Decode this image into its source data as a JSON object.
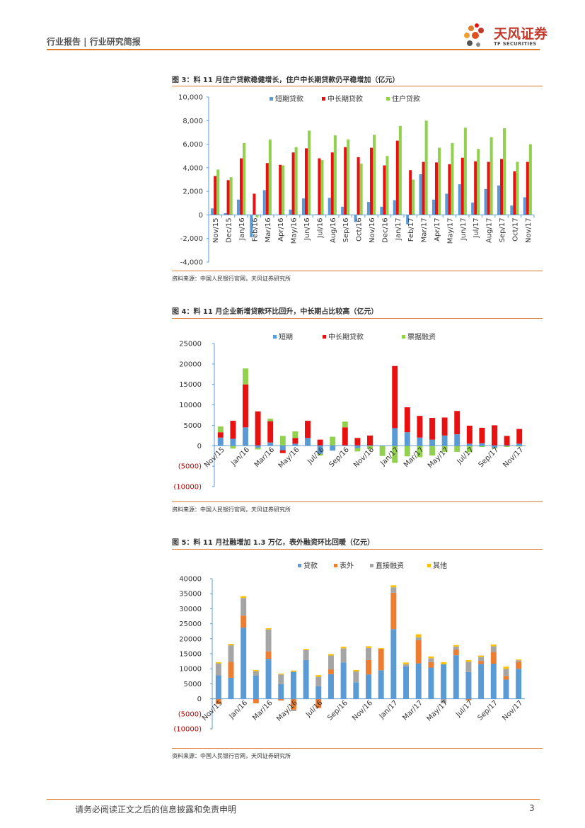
{
  "header": {
    "left": "行业报告 | 行业研究简报",
    "logo_cn": "天风证券",
    "logo_en": "TF SECURITIES"
  },
  "footer": {
    "disclaimer": "请务必阅读正文之后的信息披露和免责申明",
    "page": "3"
  },
  "colors": {
    "accent": "#e07c2c",
    "blue": "#5b9bd5",
    "red": "#e81010",
    "green": "#92d050",
    "orange": "#ed7d31",
    "gray": "#a5a5a5",
    "gold": "#ffc000",
    "neg": "#c00000"
  },
  "figures": [
    {
      "title": "图 3：料 11 月住户贷款稳健增长，住户中长期贷款仍平稳增加（亿元）",
      "source": "资料来源：中国人民银行官网，天风证券研究所"
    },
    {
      "title": "图 4：料 11 月企业新增贷款环比回升，中长期占比较高（亿元）",
      "source": "资料来源：中国人民银行官网，天风证券研究所"
    },
    {
      "title": "图 5：料 11 月社融增加 1.3 万亿，表外融资环比回暖（亿元）",
      "source": "资料来源：中国人民银行官网，天风证券研究所"
    }
  ],
  "chart_data": [
    {
      "type": "bar",
      "categories": [
        "Nov/15",
        "Dec/15",
        "Jan/16",
        "Feb/16",
        "Mar/16",
        "Apr/16",
        "May/16",
        "Jun/16",
        "Jul/16",
        "Aug/16",
        "Sep/16",
        "Oct/16",
        "Nov/16",
        "Dec/16",
        "Jan/17",
        "Feb/17",
        "Mar/17",
        "Apr/17",
        "May/17",
        "Jun/17",
        "Jul/17",
        "Aug/17",
        "Sep/17",
        "Oct/17",
        "Nov/17"
      ],
      "tick_labels": [
        "Nov/15",
        "Dec/15",
        "Jan/16",
        "Feb/16",
        "Mar/16",
        "Apr/16",
        "May/16",
        "Jun/16",
        "Jul/16",
        "Aug/16",
        "Sep/16",
        "Oct/16",
        "Nov/16",
        "Dec/16",
        "Jan/17",
        "Feb/17",
        "Mar/17",
        "Apr/17",
        "May/17",
        "Jun/17",
        "Jul/17",
        "Aug/17",
        "Sep/17",
        "Oct/17",
        "Nov/17"
      ],
      "series": [
        {
          "name": "短期贷款",
          "color": "#5b9bd5",
          "values": [
            550,
            150,
            1300,
            -1900,
            2100,
            0,
            450,
            1400,
            50,
            1450,
            700,
            -600,
            1100,
            700,
            1250,
            -800,
            3450,
            1300,
            1800,
            2600,
            1050,
            2200,
            2500,
            800,
            1500
          ]
        },
        {
          "name": "中长期贷款",
          "color": "#e81010",
          "values": [
            3300,
            2950,
            4800,
            1800,
            4400,
            4250,
            5300,
            5650,
            4800,
            5300,
            5750,
            4900,
            5700,
            4200,
            6300,
            3800,
            4500,
            4450,
            4300,
            4850,
            4550,
            4500,
            4750,
            3700,
            4500
          ]
        },
        {
          "name": "住户贷款",
          "color": "#92d050",
          "values": [
            3850,
            3200,
            6100,
            -200,
            6400,
            4200,
            5750,
            7150,
            4650,
            6750,
            6400,
            4350,
            6800,
            5000,
            7550,
            3000,
            8000,
            5700,
            6100,
            7400,
            5600,
            6600,
            7350,
            4500,
            6000
          ]
        }
      ],
      "ylim": [
        -4000,
        10000
      ],
      "yticks": [
        -4000,
        -2000,
        0,
        2000,
        4000,
        6000,
        8000,
        10000
      ],
      "ytick_labels": [
        "-4,000",
        "-2,000",
        "0",
        "2,000",
        "4,000",
        "6,000",
        "8,000",
        "10,000"
      ],
      "legend_position": "top"
    },
    {
      "type": "stacked-bar",
      "categories": [
        "Nov/15",
        "Dec/15",
        "Jan/16",
        "Feb/16",
        "Mar/16",
        "Apr/16",
        "May/16",
        "Jun/16",
        "Jul/16",
        "Aug/16",
        "Sep/16",
        "Oct/16",
        "Nov/16",
        "Dec/16",
        "Jan/17",
        "Feb/17",
        "Mar/17",
        "Apr/17",
        "May/17",
        "Jun/17",
        "Jul/17",
        "Aug/17",
        "Sep/17",
        "Oct/17",
        "Nov/17"
      ],
      "tick_labels": [
        "Nov/15",
        "Jan/16",
        "Mar/16",
        "May/16",
        "Jul/16",
        "Sep/16",
        "Nov/16",
        "Jan/17",
        "Mar/17",
        "May/17",
        "Jul/17",
        "Sep/17",
        "Nov/17"
      ],
      "series": [
        {
          "name": "短期",
          "color": "#5b9bd5",
          "values": [
            2000,
            1700,
            4500,
            -500,
            800,
            -1100,
            500,
            1900,
            -2000,
            -1200,
            0,
            -600,
            0,
            0,
            4300,
            3300,
            2000,
            1500,
            2500,
            2800,
            500,
            600,
            -500,
            0,
            500
          ]
        },
        {
          "name": "中长期贷款",
          "color": "#e81010",
          "values": [
            1300,
            4400,
            10500,
            8400,
            5200,
            -700,
            1400,
            4200,
            1500,
            0,
            4500,
            1900,
            2500,
            0,
            15200,
            6100,
            5300,
            5300,
            4400,
            5700,
            4400,
            3800,
            5000,
            2400,
            3600
          ]
        },
        {
          "name": "票据融资",
          "color": "#92d050",
          "values": [
            1400,
            -700,
            3900,
            -400,
            600,
            2400,
            1600,
            0,
            -400,
            2200,
            1400,
            -800,
            -800,
            -2500,
            -4200,
            -2600,
            -2800,
            -2400,
            -1500,
            -1500,
            -1600,
            -300,
            -200,
            -300,
            -200
          ]
        }
      ],
      "ylim": [
        -10000,
        25000
      ],
      "yticks": [
        -10000,
        -5000,
        0,
        5000,
        10000,
        15000,
        20000,
        25000
      ],
      "ytick_labels": [
        "(10000)",
        "(5000)",
        "0",
        "5000",
        "10000",
        "15000",
        "20000",
        "25000"
      ],
      "legend_position": "top"
    },
    {
      "type": "stacked-bar",
      "categories": [
        "Nov/15",
        "Dec/15",
        "Jan/16",
        "Feb/16",
        "Mar/16",
        "Apr/16",
        "May/16",
        "Jun/16",
        "Jul/16",
        "Aug/16",
        "Sep/16",
        "Oct/16",
        "Nov/16",
        "Dec/16",
        "Jan/17",
        "Feb/17",
        "Mar/17",
        "Apr/17",
        "May/17",
        "Jun/17",
        "Jul/17",
        "Aug/17",
        "Sep/17",
        "Oct/17",
        "Nov/17"
      ],
      "tick_labels": [
        "Nov/15",
        "Jan/16",
        "Mar/16",
        "May/16",
        "Jul/16",
        "Sep/16",
        "Nov/16",
        "Jan/17",
        "Mar/17",
        "May/17",
        "Jul/17",
        "Sep/17",
        "Nov/17"
      ],
      "series": [
        {
          "name": "贷款",
          "color": "#5b9bd5",
          "values": [
            7800,
            7000,
            23700,
            7700,
            13300,
            4900,
            9000,
            12900,
            4200,
            8200,
            12100,
            5500,
            8100,
            9500,
            23200,
            10800,
            11800,
            10400,
            11500,
            14500,
            8900,
            11600,
            11700,
            6400,
            10000
          ]
        },
        {
          "name": "表外",
          "color": "#ed7d31",
          "values": [
            -1800,
            5300,
            4000,
            -1500,
            2500,
            -600,
            -3600,
            0,
            -3100,
            1600,
            0,
            0,
            4800,
            7200,
            12100,
            0,
            7700,
            1800,
            0,
            1900,
            -500,
            1000,
            3900,
            1200,
            2300
          ]
        },
        {
          "name": "直接融资",
          "color": "#a5a5a5",
          "values": [
            4000,
            5500,
            5900,
            1500,
            7300,
            3200,
            -500,
            3300,
            3100,
            4600,
            4700,
            3600,
            4000,
            0,
            1800,
            700,
            1000,
            1300,
            -1500,
            1000,
            3400,
            1300,
            1900,
            2400,
            500
          ]
        },
        {
          "name": "其他",
          "color": "#ffc000",
          "values": [
            400,
            500,
            600,
            400,
            400,
            300,
            400,
            400,
            600,
            500,
            500,
            500,
            600,
            200,
            700,
            600,
            1000,
            600,
            700,
            500,
            600,
            500,
            600,
            700,
            300
          ]
        }
      ],
      "ylim": [
        -10000,
        40000
      ],
      "yticks": [
        -10000,
        -5000,
        0,
        5000,
        10000,
        15000,
        20000,
        25000,
        30000,
        35000,
        40000
      ],
      "ytick_labels": [
        "(10000)",
        "(5000)",
        "0",
        "5000",
        "10000",
        "15000",
        "20000",
        "25000",
        "30000",
        "35000",
        "40000"
      ],
      "legend_position": "top"
    }
  ]
}
